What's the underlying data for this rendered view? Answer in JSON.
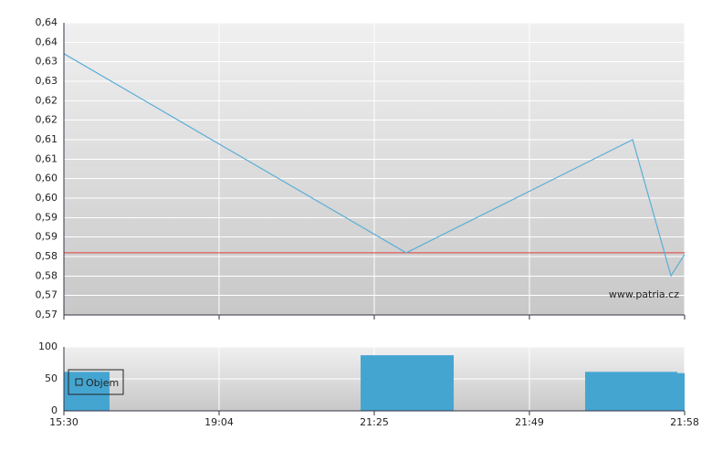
{
  "chart_data": [
    {
      "type": "line",
      "x": [
        0,
        2.206,
        3.665,
        3.912,
        4
      ],
      "xlim": [
        0,
        4
      ],
      "xticks": [
        0,
        1,
        2,
        3,
        4
      ],
      "series": [
        {
          "color": "#5aaed8",
          "values": [
            0.6326,
            0.5849,
            0.612,
            0.5794,
            0.5845
          ]
        }
      ],
      "reference_line": {
        "value": 0.5849,
        "color": "#e0413a"
      },
      "ylim": [
        0.57,
        0.64
      ],
      "yticks": [
        {
          "value": 0.57,
          "label": "0,57"
        },
        {
          "value": 0.5747,
          "label": "0,57"
        },
        {
          "value": 0.5793,
          "label": "0,58"
        },
        {
          "value": 0.584,
          "label": "0,58"
        },
        {
          "value": 0.5887,
          "label": "0,59"
        },
        {
          "value": 0.5933,
          "label": "0,59"
        },
        {
          "value": 0.598,
          "label": "0,60"
        },
        {
          "value": 0.6027,
          "label": "0,60"
        },
        {
          "value": 0.6073,
          "label": "0,61"
        },
        {
          "value": 0.612,
          "label": "0,61"
        },
        {
          "value": 0.6167,
          "label": "0,62"
        },
        {
          "value": 0.6213,
          "label": "0,62"
        },
        {
          "value": 0.626,
          "label": "0,63"
        },
        {
          "value": 0.6307,
          "label": "0,63"
        },
        {
          "value": 0.6353,
          "label": "0,64"
        },
        {
          "value": 0.64,
          "label": "0,64"
        }
      ],
      "grid": true,
      "watermark": "www.patria.cz"
    },
    {
      "type": "bar",
      "x0": [
        0,
        1.912,
        3.359,
        3.953
      ],
      "x1": [
        0.294,
        2.512,
        3.953,
        4
      ],
      "series": [
        {
          "name": "Objem",
          "color": "#45a5d1",
          "values": [
            61,
            87,
            61,
            59
          ]
        }
      ],
      "xlim": [
        0,
        4
      ],
      "xticks": [
        {
          "value": 0,
          "label": "15:30"
        },
        {
          "value": 1,
          "label": "19:04"
        },
        {
          "value": 2,
          "label": "21:25"
        },
        {
          "value": 3,
          "label": "21:49"
        },
        {
          "value": 4,
          "label": "21:58"
        }
      ],
      "ylim": [
        0,
        100
      ],
      "yticks": [
        0,
        50,
        100
      ],
      "grid": true,
      "legend": "left"
    }
  ]
}
